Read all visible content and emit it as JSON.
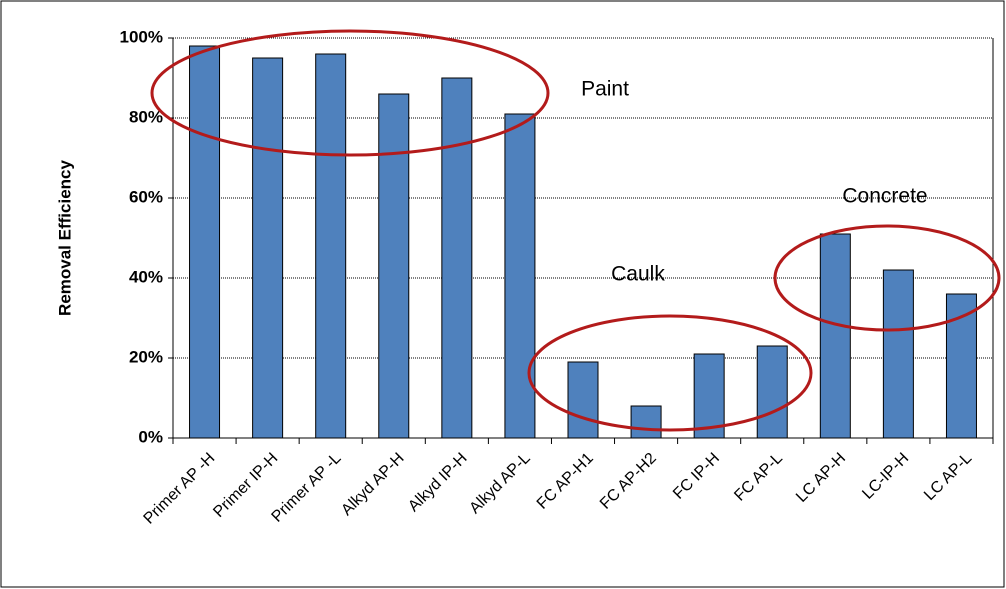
{
  "chart_data": {
    "type": "bar",
    "y_label": "Removal Efficiency",
    "categories": [
      "Primer AP -H",
      "Primer IP-H",
      "Primer AP -L",
      "Alkyd AP-H",
      "Alkyd IP-H",
      "Alkyd AP-L",
      "FC  AP-H1",
      "FC  AP-H2",
      "FC  IP-H",
      "FC AP-L",
      "LC AP-H",
      "LC-IP-H",
      "LC AP-L"
    ],
    "values": [
      98,
      95,
      96,
      86,
      90,
      81,
      19,
      8,
      21,
      23,
      51,
      42,
      36
    ],
    "color": "#4f81bd",
    "ylim": [
      0,
      100
    ],
    "yticks": [
      {
        "value": 0,
        "label": "0%"
      },
      {
        "value": 20,
        "label": "20%"
      },
      {
        "value": 40,
        "label": "40%"
      },
      {
        "value": 60,
        "label": "60%"
      },
      {
        "value": 80,
        "label": "80%"
      },
      {
        "value": 100,
        "label": "100%"
      }
    ],
    "grid": true,
    "annotations": [
      "Paint",
      "Caulk",
      "Concrete"
    ]
  }
}
